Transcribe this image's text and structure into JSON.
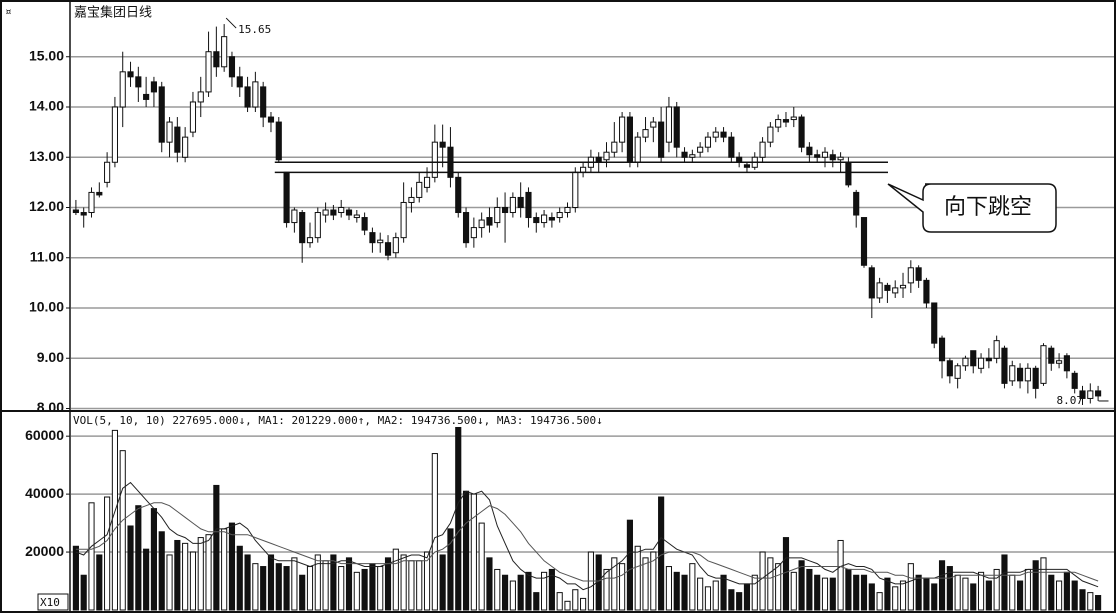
{
  "chart_data": {
    "type": "candlestick",
    "title": "嘉宝集团日线",
    "corner_symbol": "¤",
    "max_label": 15.65,
    "min_label": 8.07,
    "callout": "向下跳空",
    "vol_header": "VOL(5, 10, 10) 227695.000↓, MA1: 201229.000↑, MA2: 194736.500↓, MA3: 194736.500↓",
    "vol_unit": "X10",
    "up_color": "#ffffff",
    "down_color": "#111111",
    "line_color": "#111111",
    "grid_color": "#9a9a9a",
    "grid": true,
    "ylim": [
      7.97,
      15.97
    ],
    "yticks": [
      {
        "value": 8,
        "label": "8.00"
      },
      {
        "value": 9,
        "label": "9.00"
      },
      {
        "value": 10,
        "label": "10.00"
      },
      {
        "value": 11,
        "label": "11.00"
      },
      {
        "value": 12,
        "label": "12.00"
      },
      {
        "value": 13,
        "label": "13.00"
      },
      {
        "value": 14,
        "label": "14.00"
      },
      {
        "value": 15,
        "label": "15.00"
      }
    ],
    "y2lim": [
      0,
      68000
    ],
    "y2ticks": [
      20000,
      40000,
      60000
    ],
    "open": [
      11.95,
      11.9,
      11.9,
      12.3,
      12.5,
      12.9,
      14.0,
      14.7,
      14.6,
      14.25,
      14.5,
      14.4,
      13.3,
      13.6,
      13.0,
      13.5,
      14.1,
      14.3,
      15.1,
      14.8,
      15.0,
      14.6,
      14.4,
      14.0,
      14.4,
      13.8,
      13.7,
      12.7,
      11.7,
      11.9,
      11.3,
      11.4,
      11.85,
      11.95,
      11.9,
      11.95,
      11.8,
      11.8,
      11.5,
      11.3,
      11.3,
      11.1,
      11.4,
      12.1,
      12.2,
      12.4,
      12.6,
      13.3,
      13.2,
      12.6,
      11.9,
      11.4,
      11.6,
      11.8,
      11.7,
      12.0,
      11.9,
      12.2,
      12.3,
      11.8,
      11.7,
      11.8,
      11.8,
      11.9,
      12.0,
      12.7,
      12.8,
      13.0,
      12.95,
      13.1,
      13.3,
      13.8,
      12.9,
      13.4,
      13.6,
      13.7,
      13.3,
      14.0,
      13.1,
      13.0,
      13.1,
      13.2,
      13.4,
      13.5,
      13.4,
      13.0,
      12.85,
      12.8,
      13.0,
      13.3,
      13.6,
      13.75,
      13.75,
      13.8,
      13.2,
      13.05,
      13.0,
      13.05,
      12.95,
      12.9,
      12.3,
      11.8,
      10.8,
      10.2,
      10.45,
      10.3,
      10.4,
      10.5,
      10.8,
      10.55,
      10.1,
      9.4,
      8.95,
      8.6,
      8.85,
      9.15,
      8.8,
      9.0,
      9.0,
      9.2,
      8.55,
      8.8,
      8.55,
      8.8,
      8.5,
      9.2,
      8.9,
      9.05,
      8.7,
      8.35,
      8.2,
      8.35
    ],
    "high": [
      12.15,
      12.0,
      12.4,
      12.5,
      13.1,
      14.2,
      15.1,
      14.9,
      14.8,
      14.6,
      14.6,
      14.5,
      13.8,
      13.8,
      13.6,
      14.3,
      14.6,
      15.5,
      15.6,
      15.65,
      15.1,
      14.8,
      14.6,
      14.7,
      14.5,
      13.9,
      13.8,
      12.7,
      12.0,
      11.95,
      11.7,
      12.0,
      12.1,
      12.05,
      12.15,
      12.0,
      11.95,
      11.9,
      11.6,
      11.5,
      11.45,
      11.5,
      12.5,
      12.4,
      12.7,
      12.8,
      13.65,
      13.65,
      13.6,
      12.7,
      12.0,
      11.8,
      11.9,
      12.0,
      12.2,
      12.3,
      12.3,
      12.5,
      12.4,
      11.9,
      11.95,
      11.9,
      12.0,
      12.1,
      12.8,
      12.9,
      13.15,
      13.1,
      13.3,
      13.7,
      13.9,
      13.9,
      13.5,
      13.8,
      13.8,
      14.0,
      14.2,
      14.1,
      13.2,
      13.15,
      13.3,
      13.5,
      13.6,
      13.6,
      13.5,
      13.1,
      12.9,
      13.1,
      13.4,
      13.7,
      13.85,
      13.9,
      14.0,
      13.85,
      13.3,
      13.15,
      13.2,
      13.15,
      13.1,
      13.0,
      12.35,
      11.8,
      10.85,
      10.6,
      10.5,
      10.55,
      10.7,
      10.95,
      10.85,
      10.6,
      10.1,
      9.45,
      9.0,
      8.9,
      9.05,
      9.15,
      9.1,
      9.2,
      9.45,
      9.25,
      8.95,
      8.9,
      8.9,
      8.85,
      9.3,
      9.25,
      9.1,
      9.1,
      8.75,
      8.45,
      8.5,
      8.45
    ],
    "low": [
      11.85,
      11.6,
      11.8,
      12.2,
      12.4,
      12.8,
      13.6,
      14.4,
      14.1,
      14.0,
      14.0,
      13.1,
      13.0,
      12.9,
      12.9,
      13.4,
      13.8,
      14.2,
      14.6,
      14.7,
      14.4,
      14.2,
      13.9,
      13.9,
      13.6,
      13.5,
      12.9,
      11.6,
      11.5,
      10.9,
      11.2,
      11.3,
      11.7,
      11.75,
      11.8,
      11.75,
      11.7,
      11.45,
      11.1,
      11.1,
      10.95,
      11.0,
      11.3,
      11.9,
      12.1,
      12.3,
      12.5,
      12.8,
      12.4,
      11.8,
      11.2,
      11.2,
      11.4,
      11.5,
      11.6,
      11.3,
      11.8,
      11.8,
      11.6,
      11.5,
      11.6,
      11.6,
      11.7,
      11.8,
      11.9,
      12.6,
      12.7,
      12.7,
      12.8,
      13.0,
      13.1,
      12.8,
      12.8,
      13.3,
      13.3,
      12.9,
      13.1,
      13.0,
      12.9,
      12.9,
      13.0,
      13.1,
      13.3,
      13.3,
      12.9,
      12.8,
      12.7,
      12.75,
      12.9,
      13.2,
      13.5,
      13.6,
      13.6,
      13.1,
      12.9,
      12.9,
      12.8,
      12.8,
      12.7,
      12.4,
      11.6,
      10.8,
      9.8,
      10.1,
      10.1,
      10.2,
      10.2,
      10.3,
      10.4,
      10.0,
      9.2,
      8.6,
      8.5,
      8.4,
      8.75,
      8.7,
      8.7,
      8.8,
      8.9,
      8.4,
      8.45,
      8.4,
      8.3,
      8.2,
      8.45,
      8.75,
      8.8,
      8.6,
      8.3,
      8.07,
      8.1,
      8.15
    ],
    "close": [
      11.9,
      11.85,
      12.3,
      12.25,
      12.9,
      14.0,
      14.7,
      14.6,
      14.4,
      14.15,
      14.3,
      13.3,
      13.7,
      13.1,
      13.4,
      14.1,
      14.3,
      15.1,
      14.8,
      15.4,
      14.6,
      14.4,
      14.0,
      14.5,
      13.8,
      13.7,
      12.95,
      11.7,
      11.95,
      11.3,
      11.4,
      11.9,
      11.95,
      11.85,
      12.0,
      11.85,
      11.85,
      11.55,
      11.3,
      11.35,
      11.05,
      11.4,
      12.1,
      12.2,
      12.5,
      12.6,
      13.3,
      13.2,
      12.6,
      11.9,
      11.3,
      11.6,
      11.75,
      11.65,
      12.0,
      11.9,
      12.2,
      12.0,
      11.8,
      11.7,
      11.85,
      11.75,
      11.9,
      12.0,
      12.7,
      12.8,
      13.0,
      12.9,
      13.1,
      13.3,
      13.8,
      12.9,
      13.4,
      13.55,
      13.7,
      13.0,
      14.0,
      13.2,
      13.0,
      13.05,
      13.2,
      13.4,
      13.5,
      13.4,
      13.0,
      12.9,
      12.8,
      13.0,
      13.3,
      13.6,
      13.75,
      13.7,
      13.8,
      13.2,
      13.05,
      13.0,
      13.1,
      12.95,
      13.0,
      12.45,
      11.85,
      10.85,
      10.2,
      10.5,
      10.35,
      10.4,
      10.45,
      10.8,
      10.55,
      10.1,
      9.3,
      8.95,
      8.65,
      8.85,
      9.0,
      8.85,
      9.0,
      8.95,
      9.35,
      8.5,
      8.85,
      8.55,
      8.8,
      8.4,
      9.25,
      8.9,
      8.95,
      8.75,
      8.4,
      8.2,
      8.35,
      8.25
    ],
    "volume": [
      22000,
      12000,
      37000,
      19000,
      39000,
      62000,
      55000,
      29000,
      36000,
      21000,
      35000,
      27000,
      19000,
      24000,
      23000,
      20000,
      25000,
      26000,
      43000,
      28000,
      30000,
      22000,
      19000,
      16000,
      15000,
      19000,
      16000,
      15000,
      18000,
      12000,
      15000,
      19000,
      17000,
      19000,
      15000,
      18000,
      13000,
      14000,
      16000,
      15000,
      18000,
      21000,
      19000,
      17000,
      17000,
      20000,
      54000,
      19000,
      28000,
      63000,
      41000,
      40000,
      30000,
      18000,
      14000,
      12000,
      10000,
      12000,
      13000,
      6000,
      13000,
      14000,
      6000,
      3000,
      7000,
      4000,
      20000,
      19000,
      14000,
      18000,
      16000,
      31000,
      22000,
      18000,
      20000,
      39000,
      15000,
      13000,
      12000,
      16000,
      11000,
      8000,
      10000,
      12000,
      7000,
      6000,
      9000,
      12000,
      20000,
      18000,
      16000,
      25000,
      13000,
      17000,
      14000,
      12000,
      11000,
      11000,
      24000,
      14000,
      12000,
      12000,
      9000,
      6000,
      11000,
      8000,
      10000,
      16000,
      12000,
      11000,
      9000,
      17000,
      15000,
      12000,
      11000,
      9000,
      13000,
      10000,
      14000,
      19000,
      12000,
      10000,
      14000,
      17000,
      18000,
      12000,
      10000,
      13000,
      10000,
      7000,
      6000,
      5000
    ],
    "vol_ma": [
      {
        "color": "#222222",
        "values": [
          20000,
          19000,
          22000,
          24000,
          26000,
          34000,
          42000,
          44000,
          41000,
          38000,
          35000,
          32000,
          28000,
          26000,
          25000,
          23000,
          23000,
          24000,
          28000,
          28000,
          29000,
          30000,
          28000,
          24000,
          21000,
          18000,
          17000,
          17000,
          17000,
          16000,
          15000,
          16000,
          16000,
          16000,
          17000,
          17000,
          16000,
          15000,
          15000,
          15000,
          16000,
          17000,
          18000,
          19000,
          19000,
          18000,
          25000,
          26000,
          30000,
          37000,
          41000,
          40000,
          41000,
          38000,
          29000,
          23000,
          17000,
          14000,
          12000,
          11000,
          11000,
          12000,
          11000,
          9000,
          9000,
          7000,
          8000,
          10000,
          13000,
          15000,
          17000,
          20000,
          20000,
          21000,
          21000,
          25000,
          23000,
          21000,
          20000,
          19000,
          15000,
          12000,
          11000,
          11000,
          10000,
          9000,
          9000,
          9000,
          11000,
          13000,
          15000,
          18000,
          18000,
          18000,
          17000,
          16000,
          14000,
          13000,
          15000,
          16000,
          15000,
          15000,
          14000,
          11000,
          10000,
          9000,
          9000,
          10000,
          11000,
          11000,
          11000,
          12000,
          13000,
          13000,
          13000,
          13000,
          12000,
          11000,
          11000,
          13000,
          13000,
          13000,
          14000,
          14000,
          14000,
          14000,
          14000,
          14000,
          12000,
          10000,
          9000,
          8000
        ]
      },
      {
        "color": "#555555",
        "values": [
          21000,
          21000,
          21000,
          22000,
          24000,
          28000,
          31000,
          33000,
          35000,
          36000,
          37000,
          37000,
          36000,
          34000,
          32000,
          30000,
          28000,
          27000,
          27000,
          27000,
          26000,
          26000,
          26000,
          25000,
          24000,
          23000,
          22000,
          21000,
          20000,
          19000,
          18000,
          17000,
          17000,
          17000,
          16000,
          16000,
          16000,
          16000,
          16000,
          16000,
          16000,
          16000,
          17000,
          17000,
          17000,
          17000,
          20000,
          21000,
          23000,
          27000,
          30000,
          32000,
          34000,
          36000,
          35000,
          33000,
          30000,
          27000,
          23000,
          20000,
          17000,
          15000,
          13000,
          12000,
          11000,
          10000,
          10000,
          10000,
          11000,
          11000,
          12000,
          14000,
          15000,
          16000,
          17000,
          19000,
          20000,
          20000,
          20000,
          20000,
          19000,
          17000,
          16000,
          15000,
          14000,
          13000,
          12000,
          11000,
          11000,
          11000,
          12000,
          13000,
          14000,
          15000,
          15000,
          15000,
          15000,
          15000,
          15000,
          14000,
          14000,
          14000,
          13000,
          13000,
          13000,
          12000,
          12000,
          11000,
          11000,
          11000,
          11000,
          11000,
          11000,
          12000,
          12000,
          12000,
          12000,
          12000,
          12000,
          12000,
          12000,
          12000,
          13000,
          13000,
          13000,
          13000,
          13000,
          13000,
          13000,
          12000,
          11000,
          10000
        ]
      }
    ]
  }
}
